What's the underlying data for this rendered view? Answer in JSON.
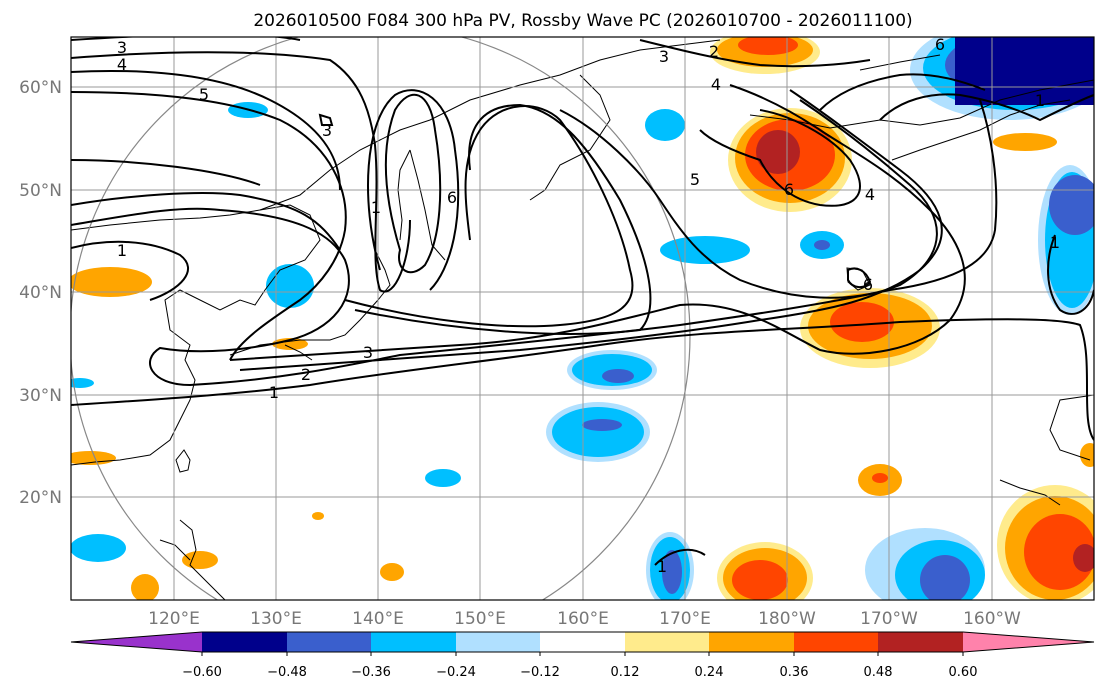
{
  "title": "2026010500 F084 300 hPa PV, Rossby Wave PC (2026010700 - 2026011100)",
  "map": {
    "lon_ticks": [
      "120°E",
      "130°E",
      "140°E",
      "150°E",
      "160°E",
      "170°E",
      "180°W",
      "170°W",
      "160°W"
    ],
    "lat_ticks": [
      "60°N",
      "50°N",
      "40°N",
      "30°N",
      "20°N"
    ],
    "lon_values": [
      120,
      130,
      140,
      150,
      160,
      170,
      180,
      190,
      200
    ],
    "lat_values": [
      60,
      50,
      40,
      30,
      20
    ],
    "extent": {
      "lon": [
        110,
        210
      ],
      "lat": [
        10,
        65
      ]
    }
  },
  "contour_labels": [
    "3",
    "4",
    "5",
    "3",
    "1",
    "1",
    "6",
    "3",
    "2",
    "1",
    "3",
    "4",
    "2",
    "5",
    "6",
    "4",
    "6",
    "1",
    "6",
    "1",
    "1"
  ],
  "colorbar": {
    "ticks": [
      "−0.60",
      "−0.48",
      "−0.36",
      "−0.24",
      "−0.12",
      "0.12",
      "0.24",
      "0.36",
      "0.48",
      "0.60"
    ],
    "colors": [
      "#9932cc",
      "#00008b",
      "#3a5fcd",
      "#00bfff",
      "#b0e0ff",
      "#ffffff",
      "#ffeb8c",
      "#ffa500",
      "#ff4500",
      "#b22222",
      "#ff82ab"
    ]
  }
}
